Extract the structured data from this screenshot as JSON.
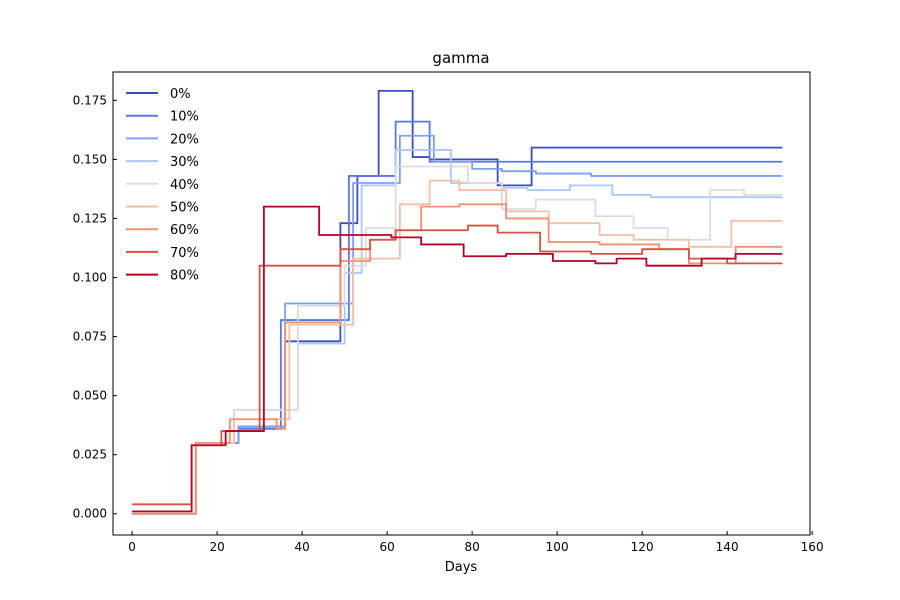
{
  "chart_data": {
    "type": "line",
    "title": "gamma",
    "xlabel": "Days",
    "ylabel": "",
    "xlim": [
      -4.5,
      159.5
    ],
    "ylim": [
      -0.009,
      0.187
    ],
    "x_ticks": [
      0,
      20,
      40,
      60,
      80,
      100,
      120,
      140,
      160
    ],
    "y_ticks": [
      0.0,
      0.025,
      0.05,
      0.075,
      0.1,
      0.125,
      0.15,
      0.175
    ],
    "x_tick_labels": [
      "0",
      "20",
      "40",
      "60",
      "80",
      "100",
      "120",
      "140",
      "160"
    ],
    "y_tick_labels": [
      "0.000",
      "0.025",
      "0.050",
      "0.075",
      "0.100",
      "0.125",
      "0.150",
      "0.175"
    ],
    "grid": false,
    "legend_position": "upper-left",
    "step": true,
    "series": [
      {
        "name": "0%",
        "color": "#3b4cc0",
        "x": [
          0,
          15,
          23,
          25,
          36,
          47,
          49,
          53,
          58,
          66,
          70,
          86,
          94,
          153
        ],
        "y": [
          0.0,
          0.03,
          0.03,
          0.036,
          0.073,
          0.073,
          0.123,
          0.143,
          0.179,
          0.151,
          0.15,
          0.139,
          0.155,
          0.155
        ]
      },
      {
        "name": "10%",
        "color": "#5a78e4",
        "x": [
          0,
          15,
          23,
          25,
          35,
          47,
          51,
          62,
          70,
          85,
          98,
          153
        ],
        "y": [
          0.0,
          0.03,
          0.03,
          0.036,
          0.082,
          0.082,
          0.143,
          0.166,
          0.149,
          0.149,
          0.149,
          0.149
        ]
      },
      {
        "name": "20%",
        "color": "#7b9ff9",
        "x": [
          0,
          15,
          23,
          25,
          36,
          48,
          52,
          63,
          71,
          80,
          87,
          95,
          108,
          153
        ],
        "y": [
          0.0,
          0.03,
          0.03,
          0.037,
          0.089,
          0.089,
          0.14,
          0.16,
          0.149,
          0.146,
          0.145,
          0.144,
          0.143,
          0.143
        ]
      },
      {
        "name": "30%",
        "color": "#aac7fd",
        "x": [
          0,
          15,
          24,
          36,
          39,
          47,
          50,
          54,
          62,
          71,
          75,
          87,
          93,
          103,
          113,
          122,
          153
        ],
        "y": [
          0.0,
          0.03,
          0.044,
          0.044,
          0.072,
          0.072,
          0.102,
          0.139,
          0.154,
          0.154,
          0.14,
          0.138,
          0.137,
          0.139,
          0.135,
          0.134,
          0.134
        ]
      },
      {
        "name": "40%",
        "color": "#dddcdc",
        "x": [
          0,
          15,
          24,
          36,
          39,
          47,
          50,
          55,
          62,
          70,
          79,
          87,
          95,
          109,
          118,
          126,
          136,
          144,
          153
        ],
        "y": [
          0.0,
          0.03,
          0.044,
          0.044,
          0.088,
          0.088,
          0.105,
          0.121,
          0.147,
          0.147,
          0.14,
          0.129,
          0.133,
          0.126,
          0.121,
          0.116,
          0.137,
          0.135,
          0.135
        ]
      },
      {
        "name": "50%",
        "color": "#f6bea4",
        "x": [
          0,
          15,
          24,
          35,
          37,
          48,
          52,
          59,
          63,
          70,
          77,
          88,
          98,
          110,
          118,
          131,
          141,
          153
        ],
        "y": [
          0.0,
          0.03,
          0.04,
          0.04,
          0.08,
          0.08,
          0.108,
          0.108,
          0.131,
          0.141,
          0.137,
          0.128,
          0.123,
          0.118,
          0.116,
          0.113,
          0.124,
          0.124
        ]
      },
      {
        "name": "60%",
        "color": "#f29072",
        "x": [
          0,
          15,
          23,
          34,
          36,
          46,
          49,
          56,
          62,
          68,
          77,
          88,
          98,
          110,
          124,
          131,
          142,
          153
        ],
        "y": [
          0.0,
          0.03,
          0.04,
          0.036,
          0.081,
          0.081,
          0.107,
          0.116,
          0.12,
          0.13,
          0.131,
          0.125,
          0.115,
          0.114,
          0.112,
          0.106,
          0.113,
          0.113
        ]
      },
      {
        "name": "70%",
        "color": "#d65244",
        "x": [
          0,
          14,
          21,
          27,
          30,
          42,
          49,
          56,
          62,
          71,
          79,
          86,
          96,
          108,
          120,
          131,
          140,
          153
        ],
        "y": [
          0.004,
          0.029,
          0.035,
          0.035,
          0.105,
          0.105,
          0.112,
          0.116,
          0.12,
          0.12,
          0.122,
          0.119,
          0.111,
          0.11,
          0.112,
          0.108,
          0.106,
          0.106
        ]
      },
      {
        "name": "80%",
        "color": "#b40426",
        "x": [
          0,
          14,
          22,
          30,
          31,
          44,
          56,
          61,
          68,
          78,
          88,
          99,
          109,
          114,
          121,
          130,
          134,
          142,
          153
        ],
        "y": [
          0.001,
          0.029,
          0.035,
          0.035,
          0.13,
          0.118,
          0.118,
          0.117,
          0.114,
          0.109,
          0.11,
          0.107,
          0.106,
          0.108,
          0.105,
          0.105,
          0.108,
          0.11,
          0.11
        ]
      }
    ]
  }
}
